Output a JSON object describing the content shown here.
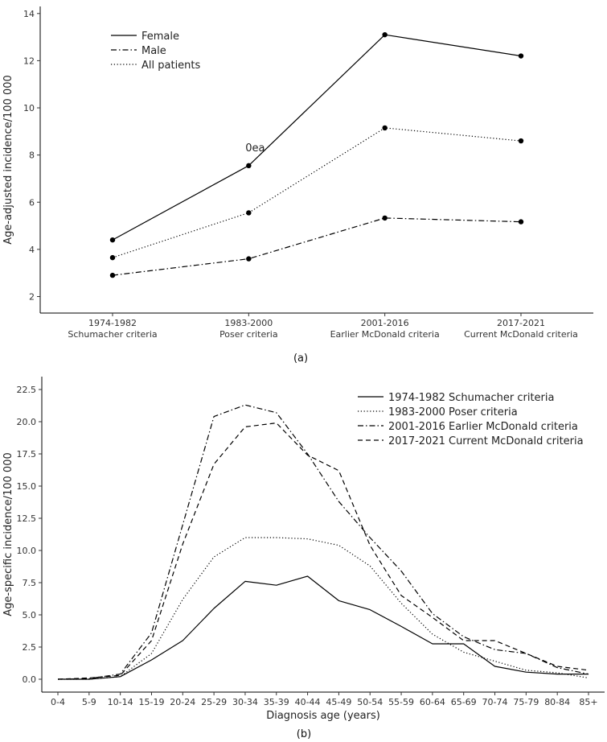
{
  "chart_data": [
    {
      "type": "line",
      "caption": "(a)",
      "ylabel": "Age-adjusted incidence/100 000",
      "xlabel": "",
      "ylim": [
        1.3,
        14.3
      ],
      "yticks": [
        2,
        4,
        6,
        8,
        10,
        12,
        14
      ],
      "categories": [
        "1974-1982",
        "1983-2000",
        "2001-2016",
        "2017-2021"
      ],
      "category_sublabels": [
        "Schumacher criteria",
        "Poser criteria",
        "Earlier McDonald criteria",
        "Current McDonald criteria"
      ],
      "annotation": "0ea",
      "legend_position": "top-left",
      "series": [
        {
          "name": "Female",
          "dash": "solid",
          "values": [
            4.4,
            7.55,
            13.1,
            12.2
          ]
        },
        {
          "name": "Male",
          "dash": "dashdot",
          "values": [
            2.9,
            3.6,
            5.33,
            5.17
          ]
        },
        {
          "name": "All patients",
          "dash": "dotted",
          "values": [
            3.65,
            5.55,
            9.15,
            8.6
          ]
        }
      ]
    },
    {
      "type": "line",
      "caption": "(b)",
      "ylabel": "Age-specific incidence/100 000",
      "xlabel": "Diagnosis age (years)",
      "ylim": [
        -1.0,
        23.5
      ],
      "yticks": [
        0.0,
        2.5,
        5.0,
        7.5,
        10.0,
        12.5,
        15.0,
        17.5,
        20.0,
        22.5
      ],
      "categories": [
        "0-4",
        "5-9",
        "10-14",
        "15-19",
        "20-24",
        "25-29",
        "30-34",
        "35-39",
        "40-44",
        "45-49",
        "50-54",
        "55-59",
        "60-64",
        "65-69",
        "70-74",
        "75-79",
        "80-84",
        "85+"
      ],
      "legend_position": "top-right",
      "series": [
        {
          "name": "1974-1982 Schumacher criteria",
          "dash": "solid",
          "values": [
            0,
            0,
            0.2,
            1.5,
            3.0,
            5.5,
            7.6,
            7.3,
            8.0,
            6.1,
            5.4,
            4.1,
            2.75,
            2.75,
            1.0,
            0.55,
            0.4,
            0.4
          ]
        },
        {
          "name": "1983-2000 Poser criteria",
          "dash": "dotted",
          "values": [
            0,
            0,
            0.2,
            2.0,
            6.2,
            9.5,
            11.0,
            11.0,
            10.9,
            10.4,
            8.8,
            5.9,
            3.5,
            2.1,
            1.4,
            0.7,
            0.5,
            0.1
          ]
        },
        {
          "name": "2001-2016 Earlier McDonald criteria",
          "dash": "dashdot",
          "values": [
            0,
            0.05,
            0.4,
            3.6,
            12.0,
            20.4,
            21.3,
            20.7,
            17.5,
            13.8,
            11.0,
            8.4,
            5.1,
            3.3,
            2.3,
            2.0,
            0.9,
            0.4
          ]
        },
        {
          "name": "2017-2021 Current McDonald criteria",
          "dash": "dashed",
          "values": [
            0,
            0.1,
            0.3,
            3.0,
            10.5,
            16.7,
            19.6,
            19.9,
            17.4,
            16.2,
            10.4,
            6.5,
            4.8,
            3.0,
            3.0,
            2.0,
            1.0,
            0.7
          ]
        }
      ]
    }
  ]
}
